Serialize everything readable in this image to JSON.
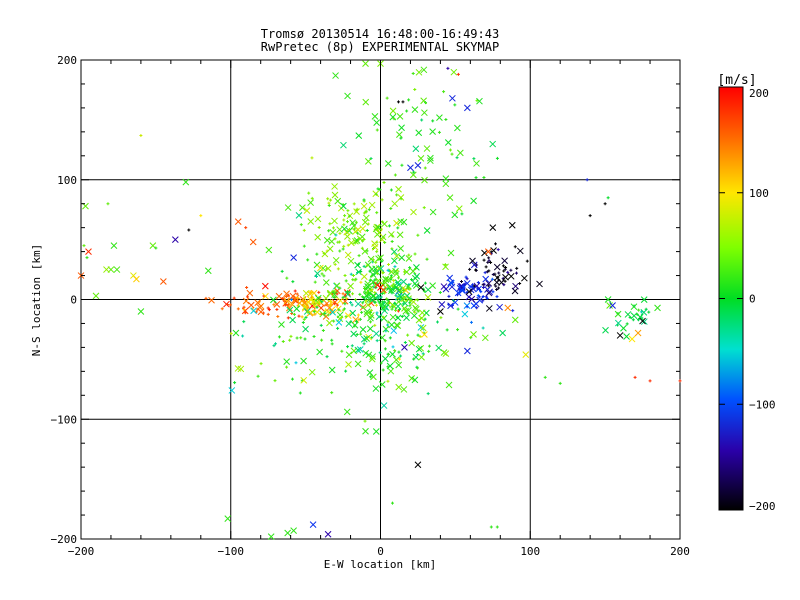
{
  "chart_data": {
    "type": "scatter",
    "title": "Tromsø 20130514 16:48:00-16:49:43",
    "subtitle": "RwPretec (8p) EXPERIMENTAL SKYMAP",
    "xlabel": "E-W location [km]",
    "ylabel": "N-S location [km]",
    "xlim": [
      -200,
      200
    ],
    "ylim": [
      -200,
      200
    ],
    "x_ticks": [
      "−200",
      "−100",
      "0",
      "100",
      "200"
    ],
    "y_ticks": [
      "−200",
      "−100",
      "0",
      "100",
      "200"
    ],
    "grid": true,
    "colorbar": {
      "label": "[m/s]",
      "range": [
        -200,
        200
      ],
      "ticks": [
        "200",
        "100",
        "0",
        "−100",
        "−200"
      ],
      "colormap": "rainbow (black-purple-blue-cyan-green-yellow-red)"
    },
    "markers": [
      "x",
      "+"
    ],
    "clusters": [
      {
        "name": "western band",
        "center": [
          -60,
          -3
        ],
        "spread": [
          25,
          6
        ],
        "velocity": 160
      },
      {
        "name": "yellow band",
        "center": [
          -42,
          -3
        ],
        "spread": [
          10,
          5
        ],
        "velocity": 105
      },
      {
        "name": "central core",
        "center": [
          0,
          5
        ],
        "spread": [
          15,
          14
        ],
        "velocity": 15
      },
      {
        "name": "upper plume",
        "center": [
          -18,
          55
        ],
        "spread": [
          18,
          18
        ],
        "velocity": 50
      },
      {
        "name": "cyan halo",
        "center": [
          -10,
          -30
        ],
        "spread": [
          35,
          30
        ],
        "velocity": 20
      },
      {
        "name": "northern streak",
        "center": [
          22,
          135
        ],
        "spread": [
          25,
          40
        ],
        "velocity": 20
      },
      {
        "name": "blue group",
        "center": [
          60,
          8
        ],
        "spread": [
          10,
          8
        ],
        "velocity": -120
      },
      {
        "name": "black group",
        "center": [
          80,
          25
        ],
        "spread": [
          12,
          12
        ],
        "velocity": -195
      },
      {
        "name": "eastern cluster",
        "center": [
          165,
          -15
        ],
        "spread": [
          8,
          6
        ],
        "velocity": -5
      }
    ],
    "points": [
      {
        "x": -10,
        "y": -110,
        "v": 20,
        "m": "x"
      },
      {
        "x": 25,
        "y": -138,
        "v": -200,
        "m": "x"
      },
      {
        "x": -102,
        "y": -183,
        "v": 20,
        "m": "x"
      },
      {
        "x": -58,
        "y": -193,
        "v": 20,
        "m": "x"
      },
      {
        "x": -62,
        "y": -195,
        "v": 20,
        "m": "x"
      },
      {
        "x": -73,
        "y": -198,
        "v": 20,
        "m": "x"
      },
      {
        "x": -45,
        "y": -188,
        "v": -110,
        "m": "x"
      },
      {
        "x": -35,
        "y": -196,
        "v": -150,
        "m": "x"
      },
      {
        "x": 75,
        "y": 60,
        "v": -200,
        "m": "x"
      },
      {
        "x": 88,
        "y": 62,
        "v": -200,
        "m": "x"
      },
      {
        "x": 140,
        "y": 70,
        "v": -200,
        "m": "+"
      },
      {
        "x": 150,
        "y": 80,
        "v": -200,
        "m": "+"
      },
      {
        "x": 152,
        "y": 85,
        "v": 0,
        "m": "+"
      },
      {
        "x": 138,
        "y": 100,
        "v": -120,
        "m": "+"
      },
      {
        "x": -130,
        "y": 98,
        "v": 20,
        "m": "x"
      },
      {
        "x": -137,
        "y": 50,
        "v": -150,
        "m": "x"
      },
      {
        "x": -128,
        "y": 58,
        "v": -200,
        "m": "+"
      },
      {
        "x": -120,
        "y": 70,
        "v": 100,
        "m": "+"
      },
      {
        "x": -95,
        "y": 65,
        "v": 160,
        "m": "x"
      },
      {
        "x": -90,
        "y": 60,
        "v": 170,
        "m": "+"
      },
      {
        "x": -115,
        "y": 24,
        "v": 20,
        "m": "x"
      },
      {
        "x": -160,
        "y": 137,
        "v": 80,
        "m": "+"
      },
      {
        "x": -182,
        "y": 80,
        "v": 40,
        "m": "+"
      },
      {
        "x": -197,
        "y": 78,
        "v": 40,
        "m": "x"
      },
      {
        "x": -198,
        "y": 45,
        "v": 40,
        "m": "+"
      },
      {
        "x": -195,
        "y": 40,
        "v": 180,
        "m": "x"
      },
      {
        "x": -196,
        "y": 35,
        "v": 20,
        "m": "+"
      },
      {
        "x": -178,
        "y": 45,
        "v": 20,
        "m": "x"
      },
      {
        "x": -180,
        "y": 25,
        "v": 40,
        "m": "x"
      },
      {
        "x": -183,
        "y": 25,
        "v": 60,
        "m": "x"
      },
      {
        "x": -176,
        "y": 25,
        "v": 30,
        "m": "x"
      },
      {
        "x": -165,
        "y": 20,
        "v": 90,
        "m": "x"
      },
      {
        "x": -163,
        "y": 17,
        "v": 110,
        "m": "x"
      },
      {
        "x": -152,
        "y": 45,
        "v": 40,
        "m": "x"
      },
      {
        "x": -150,
        "y": 43,
        "v": 20,
        "m": "+"
      },
      {
        "x": -145,
        "y": 15,
        "v": 160,
        "m": "x"
      },
      {
        "x": -190,
        "y": 3,
        "v": 40,
        "m": "x"
      },
      {
        "x": -160,
        "y": -10,
        "v": 20,
        "m": "x"
      },
      {
        "x": -200,
        "y": 20,
        "v": 160,
        "m": "x"
      },
      {
        "x": 72,
        "y": 40,
        "v": 160,
        "m": "x"
      },
      {
        "x": 90,
        "y": 44,
        "v": -200,
        "m": "+"
      },
      {
        "x": 85,
        "y": -7,
        "v": 140,
        "m": "x"
      },
      {
        "x": 90,
        "y": -17,
        "v": 40,
        "m": "x"
      },
      {
        "x": 97,
        "y": -46,
        "v": 90,
        "m": "x"
      },
      {
        "x": 70,
        "y": -32,
        "v": 40,
        "m": "x"
      },
      {
        "x": 58,
        "y": -43,
        "v": -120,
        "m": "x"
      },
      {
        "x": 40,
        "y": -10,
        "v": -200,
        "m": "x"
      },
      {
        "x": 16,
        "y": -40,
        "v": -150,
        "m": "x"
      },
      {
        "x": 180,
        "y": -68,
        "v": 180,
        "m": "+"
      },
      {
        "x": 170,
        "y": -65,
        "v": 180,
        "m": "+"
      },
      {
        "x": 200,
        "y": -68,
        "v": 180,
        "m": "+"
      },
      {
        "x": 152,
        "y": 0,
        "v": 10,
        "m": "x"
      },
      {
        "x": 153,
        "y": -5,
        "v": 40,
        "m": "x"
      },
      {
        "x": 155,
        "y": -5,
        "v": -120,
        "m": "x"
      },
      {
        "x": 185,
        "y": -7,
        "v": 20,
        "m": "x"
      },
      {
        "x": 160,
        "y": -30,
        "v": -200,
        "m": "x"
      },
      {
        "x": 168,
        "y": -33,
        "v": 100,
        "m": "x"
      },
      {
        "x": 172,
        "y": -28,
        "v": 130,
        "m": "x"
      },
      {
        "x": 175,
        "y": -18,
        "v": -200,
        "m": "x"
      },
      {
        "x": 58,
        "y": 160,
        "v": -120,
        "m": "x"
      },
      {
        "x": 48,
        "y": 168,
        "v": -120,
        "m": "x"
      },
      {
        "x": 52,
        "y": 188,
        "v": 180,
        "m": "+"
      },
      {
        "x": 45,
        "y": 193,
        "v": -150,
        "m": "+"
      },
      {
        "x": 20,
        "y": 110,
        "v": -120,
        "m": "x"
      },
      {
        "x": 25,
        "y": 112,
        "v": -120,
        "m": "x"
      },
      {
        "x": 15,
        "y": 165,
        "v": -200,
        "m": "+"
      },
      {
        "x": 12,
        "y": 165,
        "v": -200,
        "m": "+"
      },
      {
        "x": 0,
        "y": 197,
        "v": 50,
        "m": "x"
      },
      {
        "x": -10,
        "y": 197,
        "v": 40,
        "m": "x"
      },
      {
        "x": -30,
        "y": 187,
        "v": 20,
        "m": "x"
      },
      {
        "x": -22,
        "y": 170,
        "v": 20,
        "m": "x"
      },
      {
        "x": -2,
        "y": 12,
        "v": 180,
        "m": "x"
      },
      {
        "x": 0,
        "y": 10,
        "v": 200,
        "m": "x"
      },
      {
        "x": 2,
        "y": 8,
        "v": 160,
        "m": "x"
      },
      {
        "x": -58,
        "y": 35,
        "v": -120,
        "m": "x"
      },
      {
        "x": -85,
        "y": 48,
        "v": 160,
        "m": "x"
      },
      {
        "x": 27,
        "y": 10,
        "v": -200,
        "m": "x"
      },
      {
        "x": 110,
        "y": -65,
        "v": 20,
        "m": "+"
      },
      {
        "x": 120,
        "y": -70,
        "v": 20,
        "m": "+"
      },
      {
        "x": 74,
        "y": -190,
        "v": 20,
        "m": "+"
      },
      {
        "x": 78,
        "y": -190,
        "v": 20,
        "m": "+"
      },
      {
        "x": 8,
        "y": -170,
        "v": 20,
        "m": "+"
      }
    ]
  }
}
